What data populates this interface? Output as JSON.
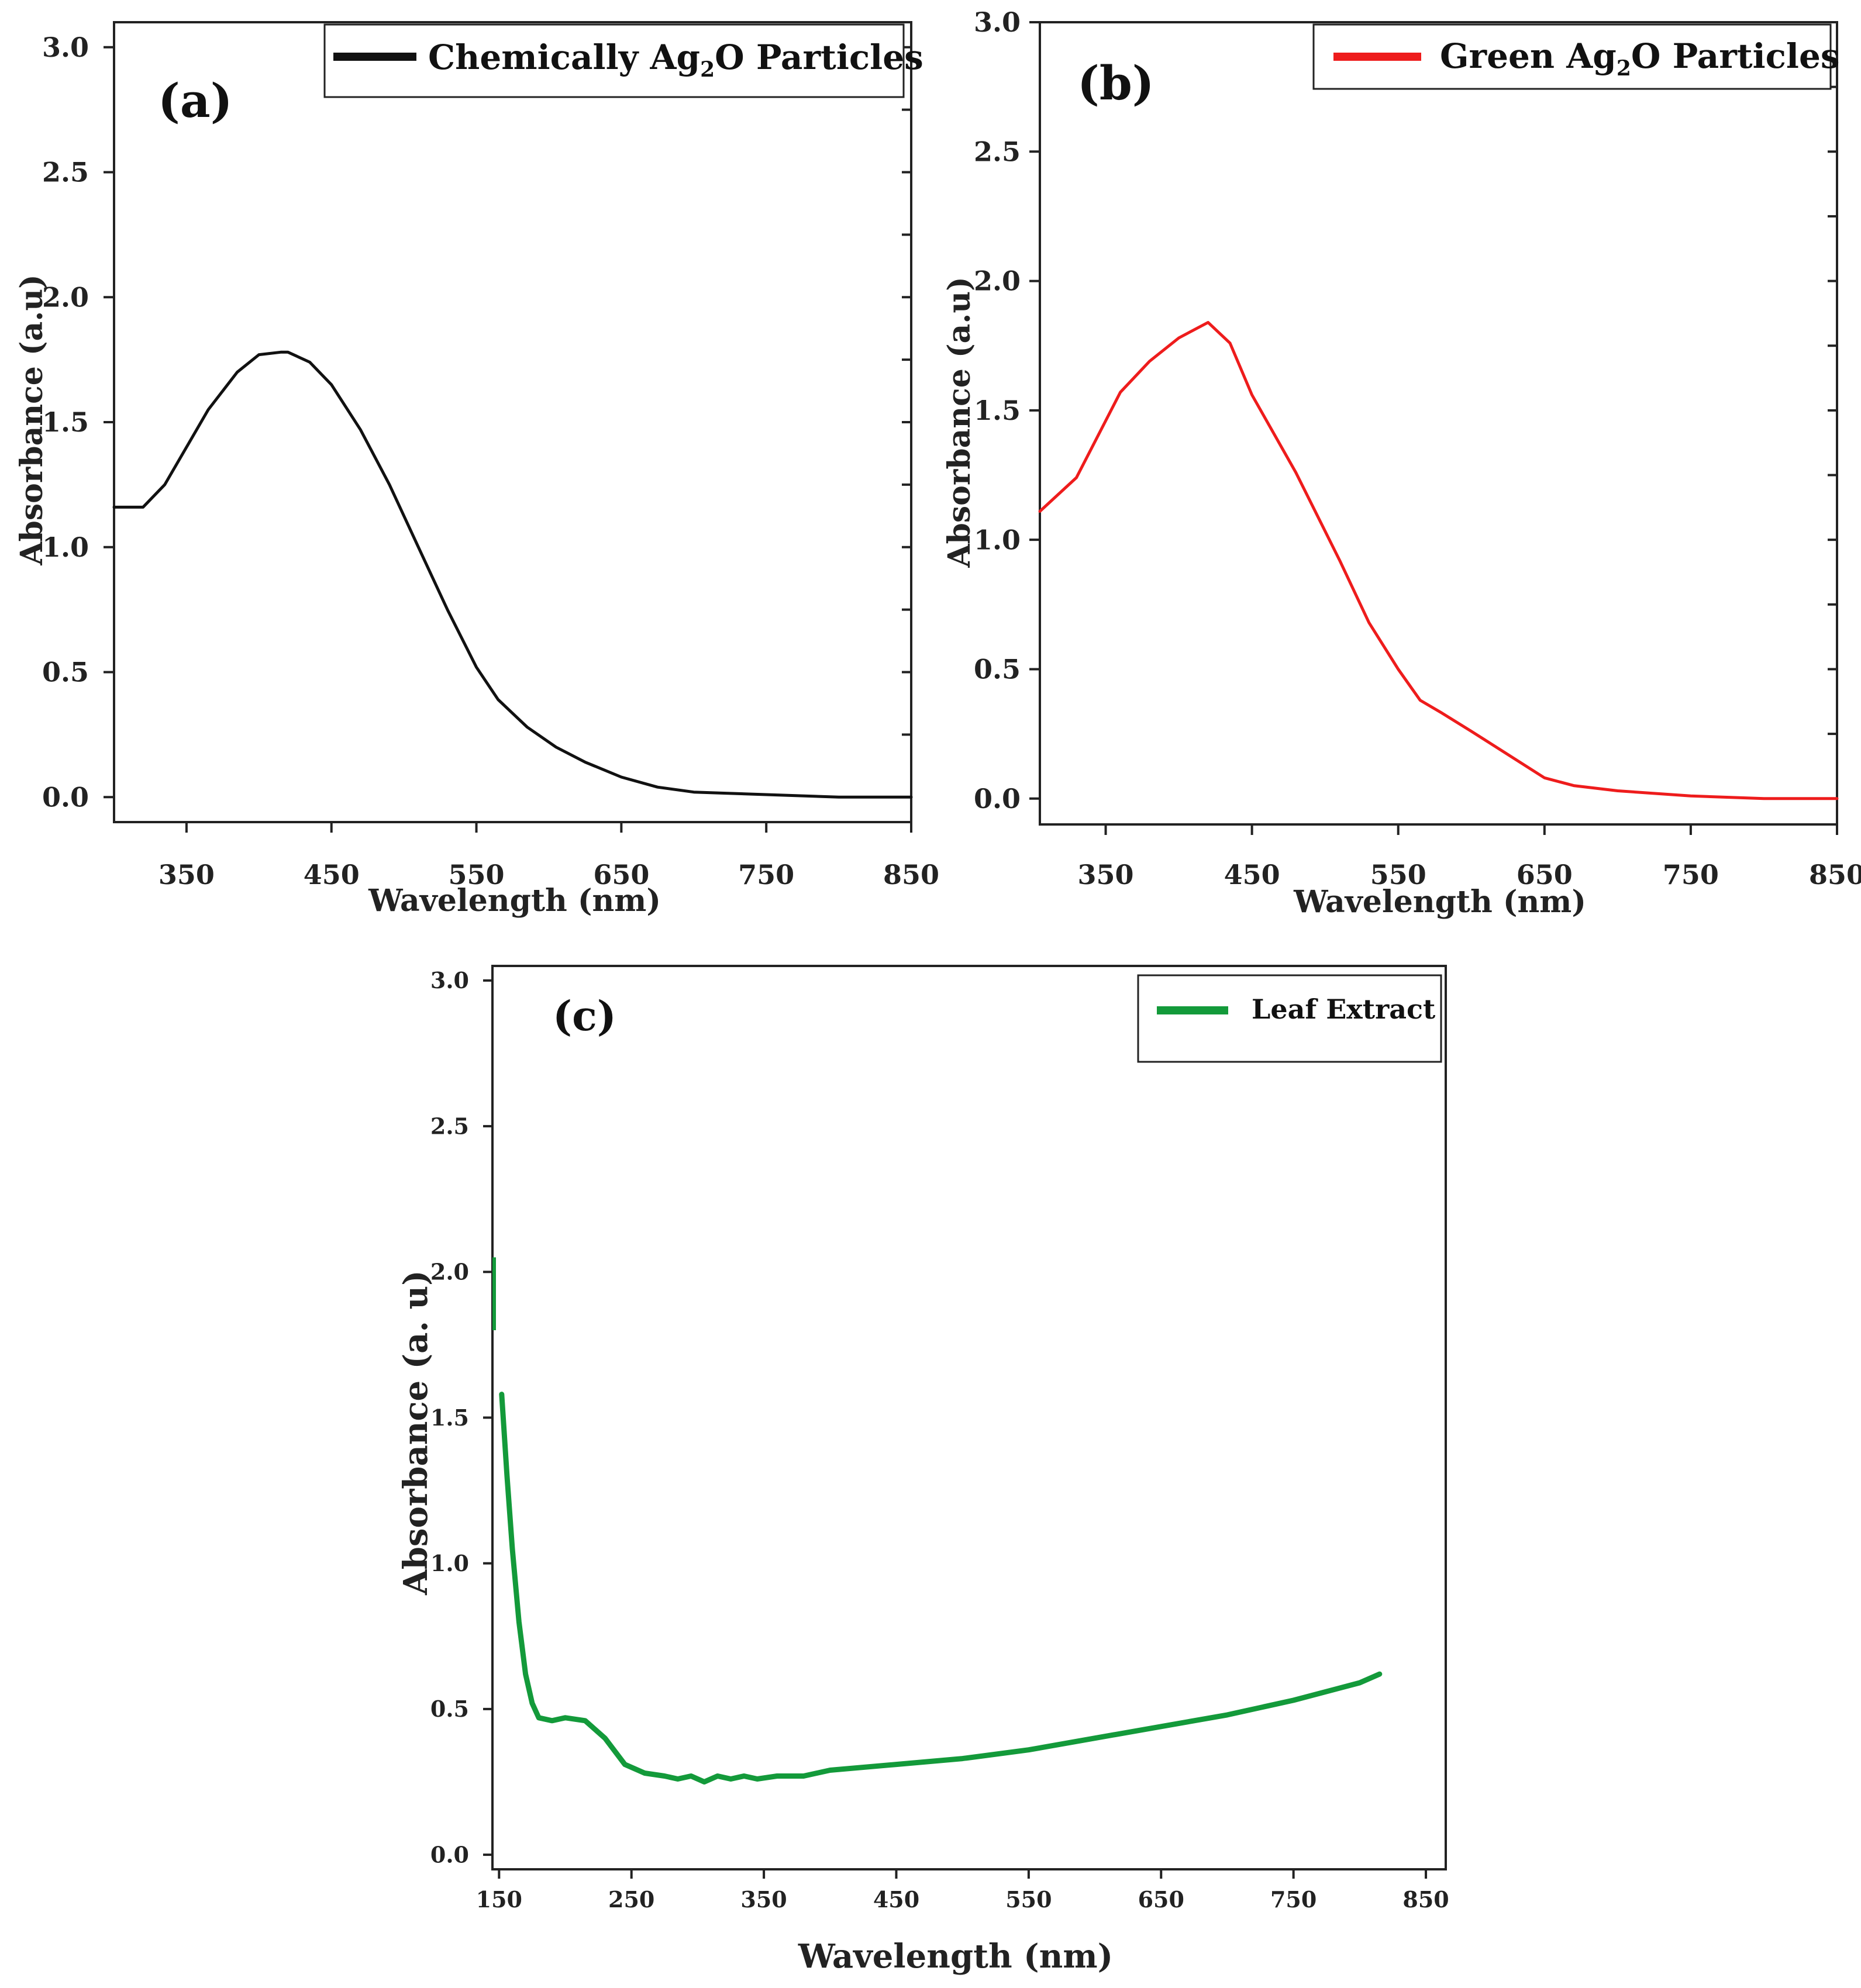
{
  "chart_data": [
    {
      "type": "line",
      "panel_label": "(a)",
      "xlabel": "Wavelength (nm)",
      "ylabel": "Absorbance (a.u)",
      "xlim": [
        300,
        850
      ],
      "ylim": [
        -0.1,
        3.1
      ],
      "x_ticks": [
        350,
        450,
        550,
        650,
        750,
        850
      ],
      "y_ticks": [
        0.0,
        0.5,
        1.0,
        1.5,
        2.0,
        2.5,
        3.0
      ],
      "grid": false,
      "legend_position": "top-right",
      "series": [
        {
          "name": "Chemically Ag2O Particles",
          "legend_main": "Chemically Ag",
          "legend_sub": "2",
          "legend_tail": "O Particles",
          "color": "#111111",
          "x": [
            300,
            310,
            320,
            335,
            350,
            365,
            385,
            400,
            415,
            420,
            435,
            450,
            470,
            490,
            510,
            530,
            550,
            565,
            585,
            605,
            625,
            650,
            675,
            700,
            750,
            800,
            850
          ],
          "y": [
            1.16,
            1.16,
            1.16,
            1.25,
            1.4,
            1.55,
            1.7,
            1.77,
            1.78,
            1.78,
            1.74,
            1.65,
            1.47,
            1.25,
            1.0,
            0.75,
            0.52,
            0.39,
            0.28,
            0.2,
            0.14,
            0.08,
            0.04,
            0.02,
            0.01,
            0.0,
            0.0
          ]
        }
      ]
    },
    {
      "type": "line",
      "panel_label": "(b)",
      "xlabel": "Wavelength (nm)",
      "ylabel": "Absorbance (a.u)",
      "xlim": [
        305,
        850
      ],
      "ylim": [
        -0.1,
        3.0
      ],
      "x_ticks": [
        350,
        450,
        550,
        650,
        750,
        850
      ],
      "y_ticks": [
        0.0,
        0.5,
        1.0,
        1.5,
        2.0,
        2.5,
        3.0
      ],
      "grid": false,
      "legend_position": "top-right",
      "series": [
        {
          "name": "Green Ag2O Particles",
          "legend_main": "Green Ag",
          "legend_sub": "2",
          "legend_tail": "O Particles",
          "color": "#ee1c1c",
          "x": [
            305,
            330,
            360,
            380,
            400,
            420,
            435,
            450,
            480,
            510,
            530,
            550,
            565,
            580,
            600,
            625,
            650,
            670,
            700,
            750,
            800,
            850
          ],
          "y": [
            1.11,
            1.24,
            1.57,
            1.69,
            1.78,
            1.84,
            1.76,
            1.56,
            1.26,
            0.92,
            0.68,
            0.5,
            0.38,
            0.33,
            0.26,
            0.17,
            0.08,
            0.05,
            0.03,
            0.01,
            0.0,
            0.0
          ]
        }
      ]
    },
    {
      "type": "line",
      "panel_label": "(c)",
      "xlabel": "Wavelength (nm)",
      "ylabel": "Absorbance (a. u)",
      "xlim": [
        145,
        865
      ],
      "ylim": [
        -0.05,
        3.05
      ],
      "x_ticks": [
        150,
        250,
        350,
        450,
        550,
        650,
        750,
        850
      ],
      "y_ticks": [
        0.0,
        0.5,
        1.0,
        1.5,
        2.0,
        2.5,
        3.0
      ],
      "grid": false,
      "legend_position": "top-right",
      "series": [
        {
          "name": "Leaf Extract",
          "color": "#139a3a",
          "x": [
            152,
            156,
            160,
            165,
            170,
            175,
            180,
            190,
            200,
            215,
            230,
            245,
            260,
            275,
            285,
            295,
            305,
            315,
            325,
            335,
            345,
            360,
            380,
            400,
            450,
            500,
            550,
            600,
            650,
            700,
            750,
            800,
            815
          ],
          "y": [
            1.58,
            1.3,
            1.05,
            0.8,
            0.62,
            0.52,
            0.47,
            0.46,
            0.47,
            0.46,
            0.4,
            0.31,
            0.28,
            0.27,
            0.26,
            0.27,
            0.25,
            0.27,
            0.26,
            0.27,
            0.26,
            0.27,
            0.27,
            0.29,
            0.31,
            0.33,
            0.36,
            0.4,
            0.44,
            0.48,
            0.53,
            0.59,
            0.62
          ]
        }
      ]
    }
  ]
}
